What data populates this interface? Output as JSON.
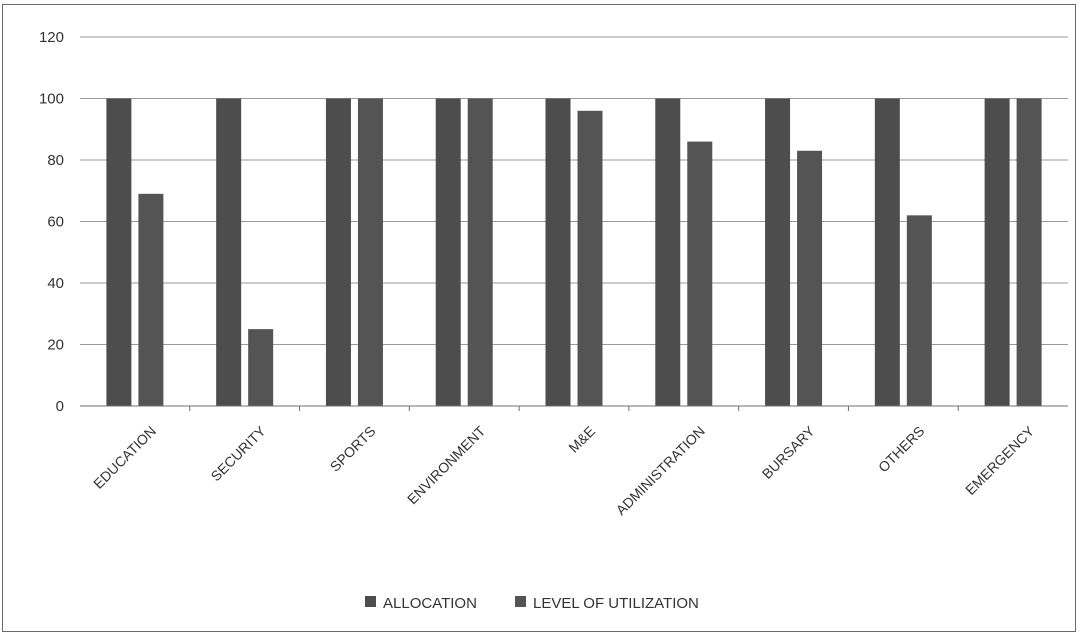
{
  "chart_data": {
    "type": "bar",
    "categories": [
      "EDUCATION",
      "SECURITY",
      "SPORTS",
      "ENVIRONMENT",
      "M&E",
      "ADMINISTRATION",
      "BURSARY",
      "OTHERS",
      "EMERGENCY"
    ],
    "series": [
      {
        "name": "ALLOCATION",
        "values": [
          100,
          100,
          100,
          100,
          100,
          100,
          100,
          100,
          100
        ]
      },
      {
        "name": "LEVEL OF UTILIZATION",
        "values": [
          69,
          25,
          100,
          100,
          96,
          86,
          83,
          62,
          100
        ]
      }
    ],
    "ylim": [
      0,
      120
    ],
    "yticks": [
      0,
      20,
      40,
      60,
      80,
      100,
      120
    ],
    "grid": true,
    "legend": "bottom",
    "colors": {
      "allocation": "#4d4d4d",
      "utilization": "#545454"
    }
  }
}
